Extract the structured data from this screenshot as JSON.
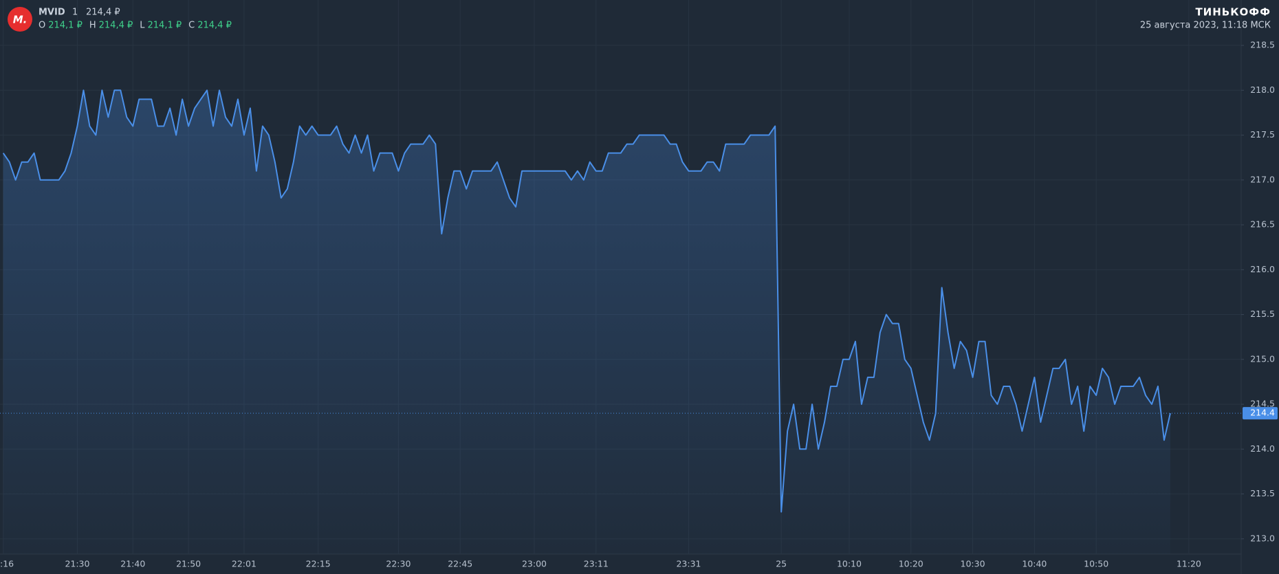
{
  "header": {
    "logo": "М.",
    "ticker": "MVID",
    "interval": "1",
    "price": "214,4 ₽",
    "ohlc": [
      {
        "key": "O",
        "value": "214,1 ₽"
      },
      {
        "key": "H",
        "value": "214,4 ₽"
      },
      {
        "key": "L",
        "value": "214,1 ₽"
      },
      {
        "key": "C",
        "value": "214,4 ₽"
      }
    ],
    "brand": "ТИНЬКОФФ",
    "datetime": "25 августа 2023, 11:18 МСК"
  },
  "chart_data": {
    "type": "area",
    "color": "#4a8fe8",
    "grid": true,
    "categories": [
      ":16",
      null,
      null,
      null,
      null,
      null,
      null,
      null,
      null,
      null,
      null,
      null,
      "21:30",
      null,
      null,
      null,
      null,
      null,
      null,
      null,
      null,
      "21:40",
      null,
      null,
      null,
      null,
      null,
      null,
      null,
      null,
      "21:50",
      null,
      null,
      null,
      null,
      null,
      null,
      null,
      null,
      "22:01",
      null,
      null,
      null,
      null,
      null,
      null,
      null,
      null,
      null,
      null,
      null,
      "22:15",
      null,
      null,
      null,
      null,
      null,
      null,
      null,
      null,
      null,
      null,
      null,
      null,
      "22:30",
      null,
      null,
      null,
      null,
      null,
      null,
      null,
      null,
      null,
      "22:45",
      null,
      null,
      null,
      null,
      null,
      null,
      null,
      null,
      null,
      null,
      null,
      "23:00",
      null,
      null,
      null,
      null,
      null,
      null,
      null,
      null,
      null,
      "23:11",
      null,
      null,
      null,
      null,
      null,
      null,
      null,
      null,
      null,
      null,
      null,
      null,
      null,
      null,
      "23:31",
      null,
      null,
      null,
      null,
      null,
      null,
      null,
      null,
      null,
      null,
      null,
      null,
      null,
      null,
      "25",
      null,
      null,
      null,
      null,
      null,
      null,
      null,
      null,
      null,
      null,
      "10:10",
      null,
      null,
      null,
      null,
      null,
      null,
      null,
      null,
      null,
      "10:20",
      null,
      null,
      null,
      null,
      null,
      null,
      null,
      null,
      null,
      "10:30",
      null,
      null,
      null,
      null,
      null,
      null,
      null,
      null,
      null,
      "10:40",
      null,
      null,
      null,
      null,
      null,
      null,
      null,
      null,
      null,
      "10:50",
      null,
      null,
      null,
      null,
      null,
      null,
      null,
      null,
      null,
      null,
      null,
      null,
      null,
      null,
      "11:20"
    ],
    "values": [
      217.3,
      217.2,
      217.0,
      217.2,
      217.2,
      217.3,
      217.0,
      217.0,
      217.0,
      217.0,
      217.1,
      217.3,
      217.6,
      218.0,
      217.6,
      217.5,
      218.0,
      217.7,
      218.0,
      218.0,
      217.7,
      217.6,
      217.9,
      217.9,
      217.9,
      217.6,
      217.6,
      217.8,
      217.5,
      217.9,
      217.6,
      217.8,
      217.9,
      218.0,
      217.6,
      218.0,
      217.7,
      217.6,
      217.9,
      217.5,
      217.8,
      217.1,
      217.6,
      217.5,
      217.2,
      216.8,
      216.9,
      217.2,
      217.6,
      217.5,
      217.6,
      217.5,
      217.5,
      217.5,
      217.6,
      217.4,
      217.3,
      217.5,
      217.3,
      217.5,
      217.1,
      217.3,
      217.3,
      217.3,
      217.1,
      217.3,
      217.4,
      217.4,
      217.4,
      217.5,
      217.4,
      216.4,
      216.8,
      217.1,
      217.1,
      216.9,
      217.1,
      217.1,
      217.1,
      217.1,
      217.2,
      217.0,
      216.8,
      216.7,
      217.1,
      217.1,
      217.1,
      217.1,
      217.1,
      217.1,
      217.1,
      217.1,
      217.0,
      217.1,
      217.0,
      217.2,
      217.1,
      217.1,
      217.3,
      217.3,
      217.3,
      217.4,
      217.4,
      217.5,
      217.5,
      217.5,
      217.5,
      217.5,
      217.4,
      217.4,
      217.2,
      217.1,
      217.1,
      217.1,
      217.2,
      217.2,
      217.1,
      217.4,
      217.4,
      217.4,
      217.4,
      217.5,
      217.5,
      217.5,
      217.5,
      217.6,
      213.3,
      214.2,
      214.5,
      214.0,
      214.0,
      214.5,
      214.0,
      214.3,
      214.7,
      214.7,
      215.0,
      215.0,
      215.2,
      214.5,
      214.8,
      214.8,
      215.3,
      215.5,
      215.4,
      215.4,
      215.0,
      214.9,
      214.6,
      214.3,
      214.1,
      214.4,
      215.8,
      215.3,
      214.9,
      215.2,
      215.1,
      214.8,
      215.2,
      215.2,
      214.6,
      214.5,
      214.7,
      214.7,
      214.5,
      214.2,
      214.5,
      214.8,
      214.3,
      214.6,
      214.9,
      214.9,
      215.0,
      214.5,
      214.7,
      214.2,
      214.7,
      214.6,
      214.9,
      214.8,
      214.5,
      214.7,
      214.7,
      214.7,
      214.8,
      214.6,
      214.5,
      214.7,
      214.1,
      214.4,
      null,
      null,
      null
    ],
    "last_price": 214.4,
    "ylim": [
      212.83,
      218.6
    ],
    "yticks": [
      {
        "value": 213,
        "label": "213.0"
      },
      213.5,
      {
        "value": 214,
        "label": "214.0"
      },
      214.5,
      {
        "value": 215,
        "label": "215.0"
      },
      215.5,
      {
        "value": 216,
        "label": "216.0"
      },
      216.5,
      {
        "value": 217,
        "label": "217.0"
      },
      217.5,
      {
        "value": 218,
        "label": "218.0"
      },
      218.5
    ]
  }
}
